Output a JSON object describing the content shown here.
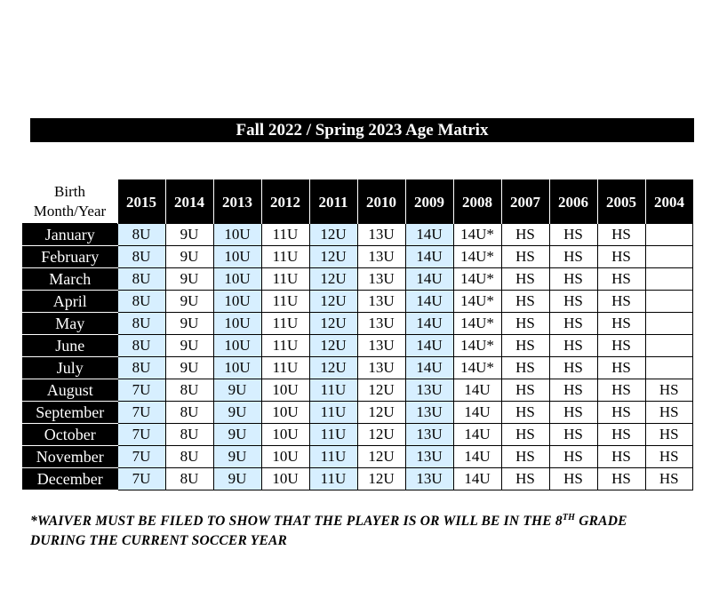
{
  "title": "Fall 2022 / Spring 2023 Age Matrix",
  "corner_label_line1": "Birth",
  "corner_label_line2": "Month/Year",
  "years": [
    "2015",
    "2014",
    "2013",
    "2012",
    "2011",
    "2010",
    "2009",
    "2008",
    "2007",
    "2006",
    "2005",
    "2004"
  ],
  "shaded_columns": [
    0,
    2,
    4,
    6
  ],
  "shade_color": "#d7efff",
  "rows": [
    {
      "month": "January",
      "values": [
        "8U",
        "9U",
        "10U",
        "11U",
        "12U",
        "13U",
        "14U",
        "14U*",
        "HS",
        "HS",
        "HS",
        ""
      ]
    },
    {
      "month": "February",
      "values": [
        "8U",
        "9U",
        "10U",
        "11U",
        "12U",
        "13U",
        "14U",
        "14U*",
        "HS",
        "HS",
        "HS",
        ""
      ]
    },
    {
      "month": "March",
      "values": [
        "8U",
        "9U",
        "10U",
        "11U",
        "12U",
        "13U",
        "14U",
        "14U*",
        "HS",
        "HS",
        "HS",
        ""
      ]
    },
    {
      "month": "April",
      "values": [
        "8U",
        "9U",
        "10U",
        "11U",
        "12U",
        "13U",
        "14U",
        "14U*",
        "HS",
        "HS",
        "HS",
        ""
      ]
    },
    {
      "month": "May",
      "values": [
        "8U",
        "9U",
        "10U",
        "11U",
        "12U",
        "13U",
        "14U",
        "14U*",
        "HS",
        "HS",
        "HS",
        ""
      ]
    },
    {
      "month": "June",
      "values": [
        "8U",
        "9U",
        "10U",
        "11U",
        "12U",
        "13U",
        "14U",
        "14U*",
        "HS",
        "HS",
        "HS",
        ""
      ]
    },
    {
      "month": "July",
      "values": [
        "8U",
        "9U",
        "10U",
        "11U",
        "12U",
        "13U",
        "14U",
        "14U*",
        "HS",
        "HS",
        "HS",
        ""
      ]
    },
    {
      "month": "August",
      "values": [
        "7U",
        "8U",
        "9U",
        "10U",
        "11U",
        "12U",
        "13U",
        "14U",
        "HS",
        "HS",
        "HS",
        "HS"
      ]
    },
    {
      "month": "September",
      "values": [
        "7U",
        "8U",
        "9U",
        "10U",
        "11U",
        "12U",
        "13U",
        "14U",
        "HS",
        "HS",
        "HS",
        "HS"
      ]
    },
    {
      "month": "October",
      "values": [
        "7U",
        "8U",
        "9U",
        "10U",
        "11U",
        "12U",
        "13U",
        "14U",
        "HS",
        "HS",
        "HS",
        "HS"
      ]
    },
    {
      "month": "November",
      "values": [
        "7U",
        "8U",
        "9U",
        "10U",
        "11U",
        "12U",
        "13U",
        "14U",
        "HS",
        "HS",
        "HS",
        "HS"
      ]
    },
    {
      "month": "December",
      "values": [
        "7U",
        "8U",
        "9U",
        "10U",
        "11U",
        "12U",
        "13U",
        "14U",
        "HS",
        "HS",
        "HS",
        "HS"
      ]
    }
  ],
  "footnote_part1": "*WAIVER MUST BE FILED TO SHOW THAT THE PLAYER IS OR WILL BE IN THE 8",
  "footnote_sup": "TH",
  "footnote_part2": " GRADE",
  "footnote_line2": "DURING THE CURRENT SOCCER YEAR"
}
